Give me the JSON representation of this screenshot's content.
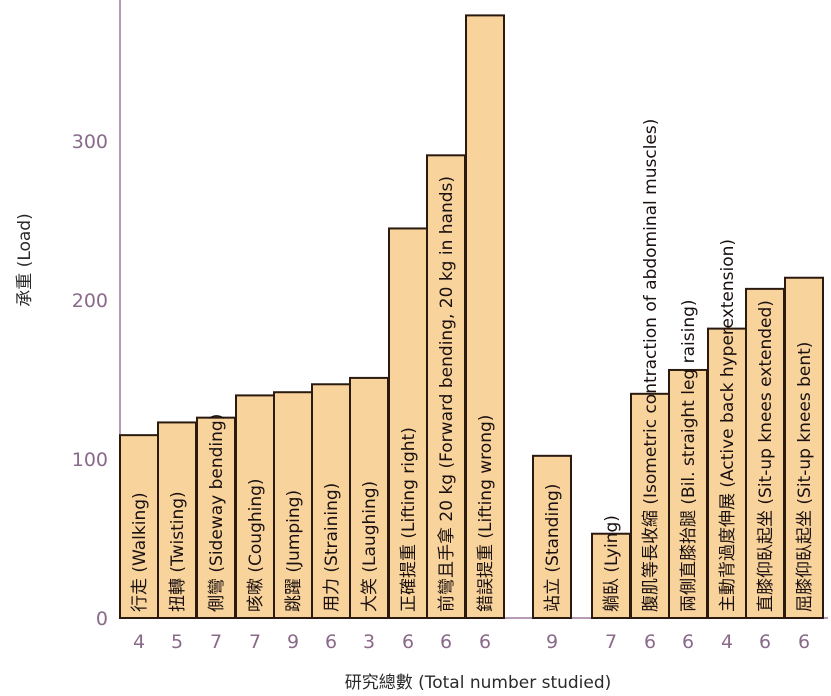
{
  "chart_data": {
    "type": "bar",
    "title": "",
    "xlabel": "研究總數  (Total number studied)",
    "ylabel": "承重  (Load)",
    "ylim": [
      0,
      380
    ],
    "yticks": [
      0,
      100,
      200,
      300
    ],
    "grid": false,
    "categories": [
      "行走 (Walking)",
      "扭轉 (Twisting)",
      "側彎 (Sideway bending)",
      "咳嗽 (Coughing)",
      "跳躍 (Jumping)",
      "用力 (Straining)",
      "大笑 (Laughing)",
      "正確提重 (Lifting right)",
      "前彎且手拿 20 kg (Forward bending, 20 kg in hands)",
      "錯誤提重 (Lifting wrong)",
      "站立 (Standing)",
      "躺臥 (Lying)",
      "腹肌等長收縮 (Isometric contraction of abdominal muscles)",
      "兩側直膝抬腿 (Bil. straight leg raising)",
      "主動背過度伸展 (Active back hyperextension)",
      "直膝仰臥起坐 (Sit-up knees extended)",
      "屈膝仰臥起坐 (Sit-up knees bent)"
    ],
    "values": [
      115,
      123,
      126,
      140,
      142,
      147,
      151,
      245,
      291,
      379,
      102,
      53,
      141,
      156,
      182,
      207,
      214
    ],
    "counts": [
      "4",
      "5",
      "7",
      "7",
      "9",
      "6",
      "3",
      "6",
      "6",
      "6",
      "9",
      "7",
      "6",
      "6",
      "4",
      "6",
      "6"
    ],
    "groups": [
      [
        0,
        9
      ],
      [
        10,
        10
      ],
      [
        11,
        16
      ]
    ]
  }
}
